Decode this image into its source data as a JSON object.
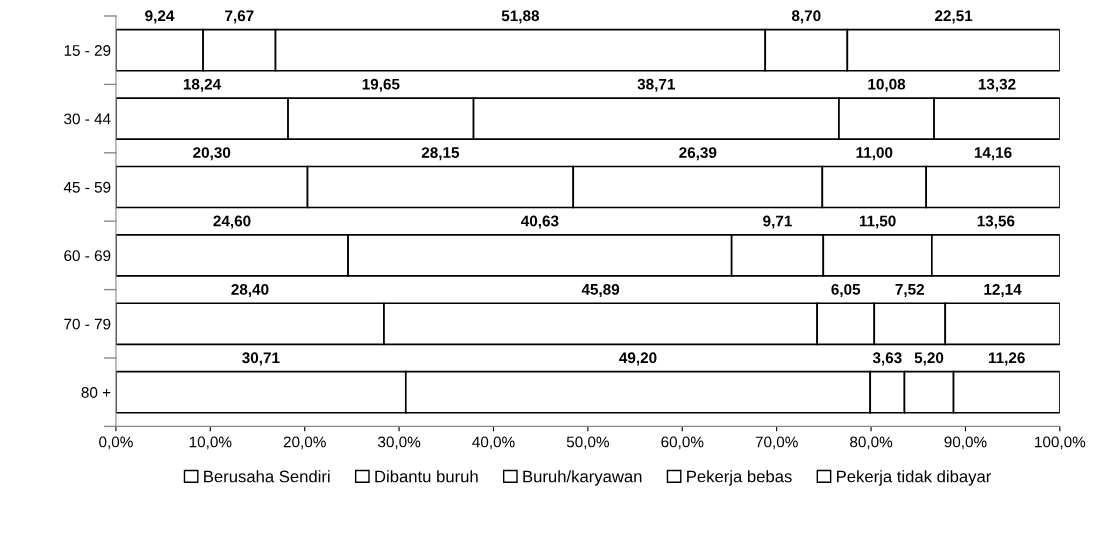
{
  "chart_data": {
    "type": "bar",
    "orientation": "horizontal",
    "stacked": true,
    "categories": [
      "15 - 29",
      "30 - 44",
      "45 - 59",
      "60 - 69",
      "70 - 79",
      "80 +"
    ],
    "series": [
      {
        "name": "Berusaha Sendiri",
        "color": "#ffffff",
        "values": [
          9.24,
          18.24,
          20.3,
          24.6,
          28.4,
          30.71
        ],
        "value_labels": [
          "9,24",
          "18,24",
          "20,30",
          "24,60",
          "28,40",
          "30,71"
        ]
      },
      {
        "name": "Dibantu buruh",
        "color": "#ffffff",
        "values": [
          7.67,
          19.65,
          28.15,
          40.63,
          45.89,
          49.2
        ],
        "value_labels": [
          "7,67",
          "19,65",
          "28,15",
          "40,63",
          "45,89",
          "49,20"
        ]
      },
      {
        "name": "Buruh/karyawan",
        "color": "#ffffff",
        "values": [
          51.88,
          38.71,
          26.39,
          9.71,
          6.05,
          3.63
        ],
        "value_labels": [
          "51,88",
          "38,71",
          "26,39",
          "9,71",
          "6,05",
          "3,63"
        ]
      },
      {
        "name": "Pekerja bebas",
        "color": "#ffffff",
        "values": [
          8.7,
          10.08,
          11.0,
          11.5,
          7.52,
          5.2
        ],
        "value_labels": [
          "8,70",
          "10,08",
          "11,00",
          "11,50",
          "7,52",
          "5,20"
        ]
      },
      {
        "name": "Pekerja tidak dibayar",
        "color": "#ffffff",
        "values": [
          22.51,
          13.32,
          14.16,
          13.56,
          12.14,
          11.26
        ],
        "value_labels": [
          "22,51",
          "13,32",
          "14,16",
          "13,56",
          "12,14",
          "11,26"
        ]
      }
    ],
    "xlim": [
      0,
      100
    ],
    "xticks": [
      {
        "value": 0,
        "label": "0,0%"
      },
      {
        "value": 10,
        "label": "10,0%"
      },
      {
        "value": 20,
        "label": "20,0%"
      },
      {
        "value": 30,
        "label": "30,0%"
      },
      {
        "value": 40,
        "label": "40,0%"
      },
      {
        "value": 50,
        "label": "50,0%"
      },
      {
        "value": 60,
        "label": "60,0%"
      },
      {
        "value": 70,
        "label": "70,0%"
      },
      {
        "value": 80,
        "label": "80,0%"
      },
      {
        "value": 90,
        "label": "90,0%"
      },
      {
        "value": 100,
        "label": "100,0%"
      }
    ],
    "grid": false,
    "legend": "bottom"
  }
}
